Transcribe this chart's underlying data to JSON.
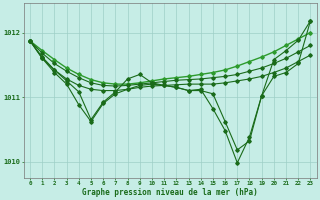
{
  "background_color": "#c6ede6",
  "grid_color": "#9ecfc7",
  "line_color_dark": "#1a6b1a",
  "line_color_light": "#2d9b2d",
  "title": "Graphe pression niveau de la mer (hPa)",
  "ylim": [
    1009.75,
    1012.45
  ],
  "yticks": [
    1010,
    1011,
    1012
  ],
  "xticks": [
    0,
    1,
    2,
    3,
    4,
    5,
    6,
    7,
    8,
    9,
    10,
    11,
    12,
    13,
    14,
    15,
    16,
    17,
    18,
    19,
    20,
    21,
    22,
    23
  ],
  "series": {
    "line_flat_top": [
      1011.87,
      1011.72,
      1011.58,
      1011.45,
      1011.35,
      1011.27,
      1011.22,
      1011.2,
      1011.2,
      1011.22,
      1011.25,
      1011.28,
      1011.3,
      1011.32,
      1011.35,
      1011.38,
      1011.42,
      1011.48,
      1011.55,
      1011.62,
      1011.7,
      1011.8,
      1011.9,
      1012.0
    ],
    "line_flat_mid": [
      1011.87,
      1011.68,
      1011.52,
      1011.4,
      1011.3,
      1011.22,
      1011.18,
      1011.17,
      1011.18,
      1011.2,
      1011.22,
      1011.24,
      1011.26,
      1011.27,
      1011.28,
      1011.3,
      1011.32,
      1011.35,
      1011.4,
      1011.45,
      1011.52,
      1011.6,
      1011.7,
      1011.8
    ],
    "line_mid": [
      1011.87,
      1011.6,
      1011.42,
      1011.28,
      1011.18,
      1011.12,
      1011.1,
      1011.1,
      1011.12,
      1011.15,
      1011.17,
      1011.18,
      1011.19,
      1011.2,
      1011.2,
      1011.2,
      1011.22,
      1011.25,
      1011.28,
      1011.32,
      1011.38,
      1011.45,
      1011.55,
      1011.65
    ],
    "line_dip1": [
      1011.87,
      1011.6,
      1011.38,
      1011.2,
      1010.88,
      1010.62,
      1010.9,
      1011.05,
      1011.12,
      1011.18,
      1011.2,
      1011.18,
      1011.15,
      1011.1,
      1011.1,
      1011.05,
      1010.62,
      1010.18,
      1010.32,
      1011.02,
      1011.58,
      1011.72,
      1011.88,
      1012.18
    ],
    "line_dip2": [
      1011.87,
      1011.62,
      1011.42,
      1011.25,
      1011.08,
      1010.65,
      1010.92,
      1011.08,
      1011.28,
      1011.35,
      1011.22,
      1011.18,
      1011.15,
      1011.1,
      1011.12,
      1010.82,
      1010.48,
      1009.98,
      1010.38,
      1011.02,
      1011.32,
      1011.38,
      1011.52,
      1012.18
    ]
  }
}
